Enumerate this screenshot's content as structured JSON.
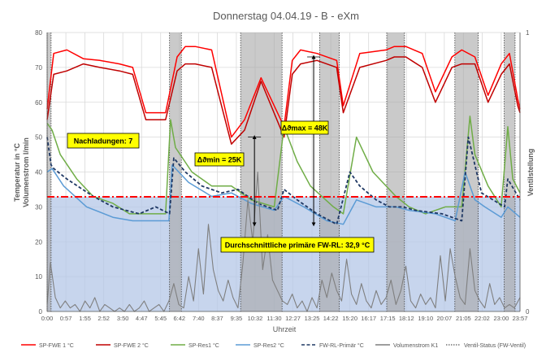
{
  "chart_data": {
    "type": "line",
    "title": "Donnerstag  04.04.19 - B - eXm",
    "xlabel": "Uhrzeit",
    "ylabel": "Temperatur in °C\nVolumenstrom l/min",
    "ylabel_lines": [
      "Temperatur in °C",
      "Volumenstrom l/min"
    ],
    "y2label": "Ventilstellung",
    "ylim": [
      0,
      80
    ],
    "y2lim": [
      0,
      1
    ],
    "yticks": [
      0,
      10,
      20,
      30,
      40,
      50,
      60,
      70,
      80
    ],
    "y2ticks": [
      0,
      1
    ],
    "xlim": [
      0,
      1437
    ],
    "x_tick_minutes": [
      0,
      57,
      115,
      172,
      230,
      287,
      345,
      402,
      460,
      517,
      575,
      632,
      690,
      747,
      805,
      862,
      920,
      977,
      1035,
      1092,
      1150,
      1207,
      1265,
      1322,
      1380,
      1437
    ],
    "x_tick_labels": [
      "0:00",
      "0:57",
      "1:55",
      "2:52",
      "3:50",
      "4:47",
      "5:45",
      "6:42",
      "7:40",
      "8:37",
      "9:35",
      "10:32",
      "11:30",
      "12:27",
      "13:25",
      "14:22",
      "15:20",
      "16:17",
      "17:15",
      "18:12",
      "19:10",
      "20:07",
      "21:05",
      "22:02",
      "23:00",
      "23:57"
    ],
    "grid": true,
    "legend_position": "bottom",
    "reference_line": {
      "name": "Durchschnittliche primäre FW-RL",
      "value": 32.9,
      "color": "#ff0000"
    },
    "shaded_region": {
      "y_from": 0,
      "y_to": 32.9,
      "color": "#b4c7e7"
    },
    "valve_open_intervals": [
      [
        0,
        12
      ],
      [
        372,
        408
      ],
      [
        588,
        714
      ],
      [
        828,
        888
      ],
      [
        1032,
        1086
      ],
      [
        1239,
        1310
      ],
      [
        1389,
        1422
      ]
    ],
    "series": [
      {
        "name": "SP-FWE 1 °C",
        "color": "#ff0000",
        "style": "solid",
        "x": [
          0,
          20,
          60,
          110,
          160,
          220,
          260,
          300,
          360,
          395,
          420,
          450,
          500,
          560,
          600,
          650,
          720,
          745,
          770,
          820,
          880,
          900,
          950,
          1030,
          1055,
          1090,
          1140,
          1180,
          1230,
          1260,
          1300,
          1340,
          1380,
          1405,
          1430,
          1437
        ],
        "y": [
          58,
          74,
          75,
          72.5,
          72,
          71,
          70,
          57,
          57,
          73,
          76,
          76,
          75,
          50,
          55,
          67,
          53,
          72,
          75,
          74,
          72,
          59,
          74,
          75,
          76,
          76,
          74,
          63,
          73,
          75,
          73,
          62,
          71,
          74,
          61,
          58
        ]
      },
      {
        "name": "SP-FWE 2 °C",
        "color": "#c00000",
        "style": "solid",
        "x": [
          0,
          20,
          60,
          110,
          160,
          220,
          260,
          300,
          360,
          395,
          420,
          450,
          500,
          560,
          600,
          650,
          720,
          745,
          770,
          820,
          880,
          900,
          950,
          1030,
          1055,
          1090,
          1140,
          1180,
          1230,
          1260,
          1300,
          1340,
          1380,
          1405,
          1430,
          1437
        ],
        "y": [
          55,
          68,
          69,
          71,
          70,
          69,
          68,
          55,
          55,
          69,
          71,
          71,
          70,
          48,
          52,
          66,
          50,
          68,
          71,
          72,
          70,
          57,
          70,
          72,
          73,
          73,
          70,
          60,
          70,
          71,
          71,
          60,
          68,
          71,
          59,
          57
        ]
      },
      {
        "name": "SP-Res1 °C",
        "color": "#70ad47",
        "style": "solid",
        "x": [
          0,
          15,
          40,
          90,
          140,
          200,
          250,
          300,
          360,
          375,
          390,
          440,
          500,
          560,
          620,
          690,
          720,
          760,
          800,
          870,
          900,
          940,
          990,
          1060,
          1100,
          1150,
          1210,
          1260,
          1285,
          1300,
          1340,
          1380,
          1400,
          1415,
          1437
        ],
        "y": [
          54,
          52,
          45,
          38,
          33,
          31,
          28,
          28,
          28,
          55,
          47,
          40,
          36,
          36,
          32,
          30,
          53,
          43,
          36,
          30,
          28,
          50,
          40,
          33,
          30,
          28,
          30,
          30,
          56,
          45,
          36,
          30,
          53,
          38,
          34
        ]
      },
      {
        "name": "SP-Res2 °C",
        "color": "#5b9bd5",
        "style": "solid",
        "x": [
          0,
          15,
          50,
          120,
          200,
          260,
          300,
          370,
          380,
          430,
          500,
          560,
          620,
          690,
          720,
          780,
          850,
          900,
          940,
          1000,
          1060,
          1100,
          1180,
          1240,
          1270,
          1300,
          1330,
          1380,
          1400,
          1437
        ],
        "y": [
          40,
          41,
          36,
          30,
          27,
          26,
          26,
          26,
          42,
          37,
          33,
          34,
          31,
          29,
          33,
          30,
          26,
          25,
          32,
          30,
          30,
          29,
          28,
          26,
          40,
          32,
          30,
          27,
          30,
          27
        ]
      },
      {
        "name": "FW-RL-Primär °C",
        "color": "#1f3864",
        "style": "dashed",
        "x": [
          0,
          12,
          20,
          60,
          140,
          200,
          280,
          330,
          372,
          385,
          420,
          470,
          530,
          580,
          640,
          700,
          720,
          760,
          820,
          880,
          920,
          950,
          1000,
          1040,
          1080,
          1120,
          1200,
          1260,
          1280,
          1320,
          1390,
          1400,
          1437
        ],
        "y": [
          50,
          42,
          41,
          38,
          33,
          30,
          28,
          30,
          28,
          44,
          40,
          36,
          34,
          35,
          31,
          29,
          35,
          32,
          28,
          25,
          40,
          36,
          32,
          30,
          30,
          29,
          28,
          26,
          50,
          34,
          30,
          38,
          32
        ]
      },
      {
        "name": "Volumenstrom K1",
        "color": "#7f7f7f",
        "style": "solid",
        "x": [
          0,
          10,
          25,
          40,
          55,
          70,
          85,
          100,
          115,
          130,
          145,
          160,
          175,
          190,
          205,
          220,
          235,
          250,
          265,
          280,
          295,
          310,
          325,
          340,
          355,
          370,
          385,
          400,
          415,
          430,
          445,
          460,
          475,
          490,
          505,
          520,
          535,
          550,
          565,
          580,
          595,
          610,
          625,
          640,
          655,
          670,
          685,
          700,
          715,
          730,
          745,
          760,
          775,
          790,
          805,
          820,
          835,
          850,
          865,
          880,
          895,
          910,
          925,
          940,
          955,
          970,
          985,
          1000,
          1015,
          1030,
          1045,
          1060,
          1075,
          1090,
          1105,
          1120,
          1135,
          1150,
          1165,
          1180,
          1195,
          1210,
          1225,
          1240,
          1255,
          1270,
          1285,
          1300,
          1315,
          1330,
          1345,
          1360,
          1375,
          1390,
          1405,
          1420,
          1437
        ],
        "y": [
          2,
          14,
          4,
          1,
          3,
          1,
          2,
          0,
          3,
          1,
          4,
          0,
          2,
          1,
          0,
          1,
          0,
          2,
          0,
          1,
          3,
          0,
          1,
          2,
          0,
          3,
          8,
          2,
          1,
          10,
          3,
          18,
          5,
          25,
          12,
          6,
          3,
          9,
          4,
          1,
          14,
          32,
          20,
          40,
          12,
          22,
          9,
          6,
          3,
          2,
          5,
          1,
          3,
          0,
          4,
          1,
          9,
          4,
          11,
          6,
          3,
          15,
          5,
          2,
          8,
          3,
          1,
          6,
          2,
          4,
          9,
          2,
          6,
          13,
          3,
          1,
          5,
          2,
          4,
          1,
          16,
          3,
          18,
          10,
          4,
          2,
          18,
          6,
          3,
          1,
          8,
          2,
          4,
          1,
          2,
          1,
          4
        ]
      },
      {
        "name": "Ventil-Status (FW-Ventil)",
        "color": "#595959",
        "style": "dotted"
      }
    ],
    "annotations": [
      {
        "text": "Nachladungen: 7",
        "type": "label"
      },
      {
        "text": "Δϑmin = 25K",
        "type": "bracket",
        "x": 630,
        "y_from": 50,
        "y_to": 25
      },
      {
        "text": "Δϑmax = 48K",
        "type": "bracket",
        "x": 810,
        "y_from": 73,
        "y_to": 25
      },
      {
        "text": "Durchschnittliche primäre FW-RL: 32,9 °C",
        "type": "label"
      }
    ]
  }
}
